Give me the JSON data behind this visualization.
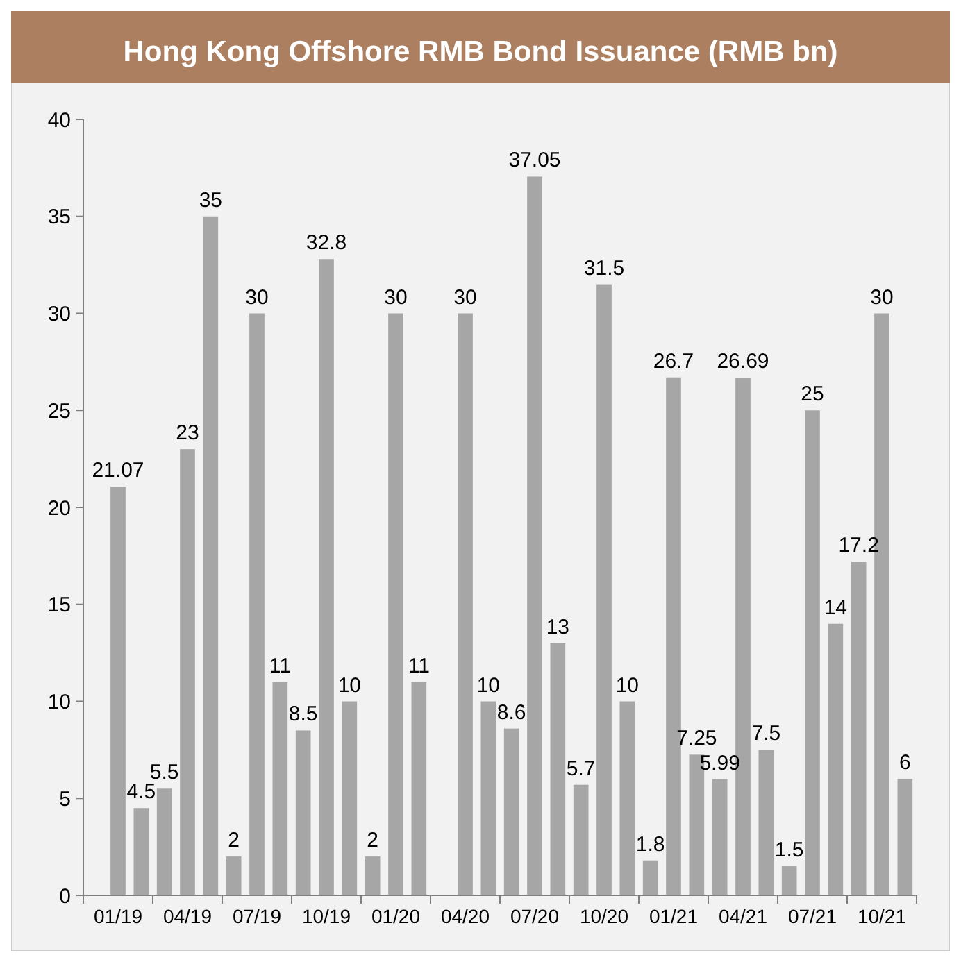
{
  "chart_data": {
    "type": "bar",
    "title": "Hong Kong Offshore RMB Bond Issuance (RMB bn)",
    "categories": [
      null,
      "01/19",
      null,
      null,
      "04/19",
      null,
      null,
      "07/19",
      null,
      null,
      "10/19",
      null,
      null,
      "01/20",
      null,
      null,
      "04/20",
      null,
      null,
      "07/20",
      null,
      null,
      "10/20",
      null,
      null,
      "01/21",
      null,
      null,
      "04/21",
      null,
      null,
      "07/21",
      null,
      null,
      "10/21",
      null
    ],
    "values": [
      null,
      21.07,
      4.5,
      5.5,
      23,
      35,
      2,
      30,
      11,
      8.5,
      32.8,
      10,
      2,
      30,
      11,
      null,
      30,
      10,
      8.6,
      37.05,
      13,
      5.7,
      31.5,
      10,
      1.8,
      26.7,
      7.25,
      5.99,
      26.69,
      7.5,
      1.5,
      25,
      14,
      17.2,
      30,
      6
    ],
    "color": "#a6a6a6",
    "ylim": [
      0,
      40
    ],
    "yticks": [
      0,
      5,
      10,
      15,
      20,
      25,
      30,
      35,
      40
    ],
    "data_labels": true
  }
}
